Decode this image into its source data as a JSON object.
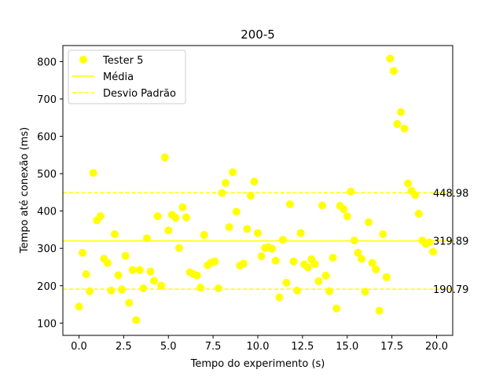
{
  "chart_data": {
    "type": "scatter",
    "title": "200-5",
    "xlabel": "Tempo do experimento (s)",
    "ylabel": "Tempo até conexão (ms)",
    "xlim": [
      -0.9,
      20.9
    ],
    "ylim": [
      67,
      843
    ],
    "xticks": [
      0.0,
      2.5,
      5.0,
      7.5,
      10.0,
      12.5,
      15.0,
      17.5,
      20.0
    ],
    "xtick_labels": [
      "0.0",
      "2.5",
      "5.0",
      "7.5",
      "10.0",
      "12.5",
      "15.0",
      "17.5",
      "20.0"
    ],
    "yticks": [
      100,
      200,
      300,
      400,
      500,
      600,
      700,
      800
    ],
    "ytick_labels": [
      "100",
      "200",
      "300",
      "400",
      "500",
      "600",
      "700",
      "800"
    ],
    "grid": false,
    "legend_position": "top-left",
    "colors": {
      "points": "#ffff00",
      "mean": "#ffff00",
      "std": "#ffff00"
    },
    "series": [
      {
        "name": "Tester 5",
        "points": [
          [
            0.0,
            144
          ],
          [
            0.2,
            288
          ],
          [
            0.4,
            231
          ],
          [
            0.6,
            185
          ],
          [
            0.8,
            502
          ],
          [
            1.0,
            375
          ],
          [
            1.2,
            386
          ],
          [
            1.4,
            272
          ],
          [
            1.6,
            261
          ],
          [
            1.8,
            187
          ],
          [
            2.0,
            338
          ],
          [
            2.2,
            228
          ],
          [
            2.4,
            190
          ],
          [
            2.6,
            280
          ],
          [
            2.8,
            154
          ],
          [
            3.0,
            242
          ],
          [
            3.2,
            108
          ],
          [
            3.4,
            242
          ],
          [
            3.6,
            193
          ],
          [
            3.8,
            327
          ],
          [
            4.0,
            238
          ],
          [
            4.2,
            213
          ],
          [
            4.4,
            386
          ],
          [
            4.6,
            200
          ],
          [
            4.8,
            544
          ],
          [
            5.0,
            348
          ],
          [
            5.2,
            390
          ],
          [
            5.4,
            382
          ],
          [
            5.6,
            301
          ],
          [
            5.8,
            410
          ],
          [
            6.0,
            383
          ],
          [
            6.2,
            236
          ],
          [
            6.4,
            231
          ],
          [
            6.6,
            228
          ],
          [
            6.8,
            195
          ],
          [
            7.0,
            336
          ],
          [
            7.2,
            255
          ],
          [
            7.4,
            262
          ],
          [
            7.6,
            265
          ],
          [
            7.8,
            193
          ],
          [
            8.0,
            448
          ],
          [
            8.2,
            475
          ],
          [
            8.4,
            357
          ],
          [
            8.6,
            504
          ],
          [
            8.8,
            398
          ],
          [
            9.0,
            254
          ],
          [
            9.2,
            259
          ],
          [
            9.4,
            352
          ],
          [
            9.6,
            441
          ],
          [
            9.8,
            479
          ],
          [
            10.0,
            341
          ],
          [
            10.2,
            279
          ],
          [
            10.4,
            301
          ],
          [
            10.6,
            303
          ],
          [
            10.8,
            299
          ],
          [
            11.0,
            267
          ],
          [
            11.2,
            169
          ],
          [
            11.4,
            323
          ],
          [
            11.6,
            208
          ],
          [
            11.8,
            418
          ],
          [
            12.0,
            265
          ],
          [
            12.2,
            187
          ],
          [
            12.4,
            341
          ],
          [
            12.6,
            257
          ],
          [
            12.8,
            249
          ],
          [
            13.0,
            271
          ],
          [
            13.2,
            258
          ],
          [
            13.4,
            212
          ],
          [
            13.6,
            415
          ],
          [
            13.8,
            227
          ],
          [
            14.0,
            185
          ],
          [
            14.2,
            275
          ],
          [
            14.4,
            139
          ],
          [
            14.6,
            414
          ],
          [
            14.8,
            405
          ],
          [
            15.0,
            386
          ],
          [
            15.2,
            452
          ],
          [
            15.4,
            321
          ],
          [
            15.6,
            288
          ],
          [
            15.8,
            272
          ],
          [
            16.0,
            184
          ],
          [
            16.2,
            370
          ],
          [
            16.4,
            261
          ],
          [
            16.6,
            244
          ],
          [
            16.8,
            133
          ],
          [
            17.0,
            338
          ],
          [
            17.2,
            223
          ],
          [
            17.4,
            808
          ],
          [
            17.6,
            775
          ],
          [
            17.8,
            633
          ],
          [
            18.0,
            665
          ],
          [
            18.2,
            621
          ],
          [
            18.4,
            474
          ],
          [
            18.6,
            454
          ],
          [
            18.8,
            443
          ],
          [
            19.0,
            393
          ],
          [
            19.2,
            321
          ],
          [
            19.4,
            312
          ],
          [
            19.6,
            316
          ],
          [
            19.8,
            291
          ]
        ]
      }
    ],
    "mean": {
      "name": "Média",
      "value": 319.89,
      "label": "319.89"
    },
    "std_bands": {
      "name": "Desvio Padrão",
      "upper": 448.98,
      "lower": 190.79,
      "upper_label": "448.98",
      "lower_label": "190.79"
    }
  }
}
